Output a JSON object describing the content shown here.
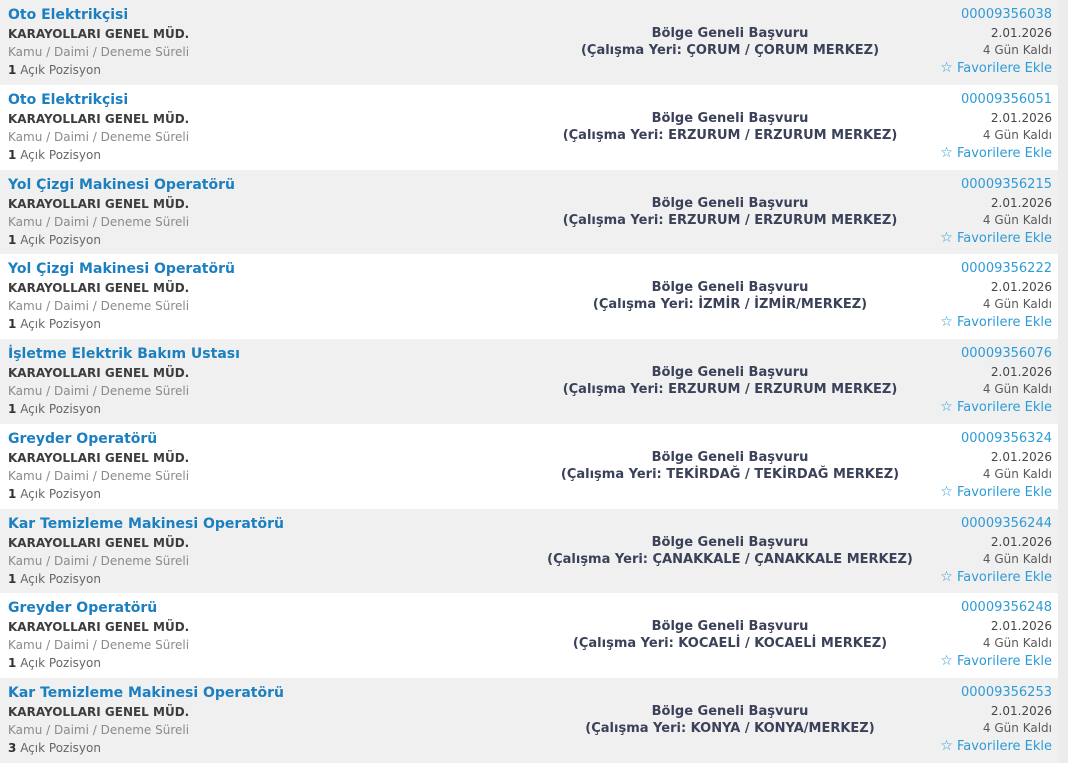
{
  "labels": {
    "open_positions": "Açık Pozisyon",
    "favorite": "Favorilere Ekle",
    "star_icon": "☆"
  },
  "colors": {
    "title_blue": "#1b7fc0",
    "link_blue": "#2e9bd6",
    "scope_navy": "#3a4158",
    "row_alt_gray": "#f0f0f0"
  },
  "listings": [
    {
      "title": "Oto Elektrikçisi",
      "org": "KARAYOLLARI GENEL MÜD.",
      "employment_type": "Kamu / Daimi / Deneme Süreli",
      "open_positions": "1",
      "application_scope": "Bölge Geneli Başvuru",
      "work_location": "(Çalışma Yeri: ÇORUM / ÇORUM MERKEZ)",
      "id": "00009356038",
      "date": "2.01.2026",
      "days_left": "4 Gün Kaldı"
    },
    {
      "title": "Oto Elektrikçisi",
      "org": "KARAYOLLARI GENEL MÜD.",
      "employment_type": "Kamu / Daimi / Deneme Süreli",
      "open_positions": "1",
      "application_scope": "Bölge Geneli Başvuru",
      "work_location": "(Çalışma Yeri: ERZURUM / ERZURUM MERKEZ)",
      "id": "00009356051",
      "date": "2.01.2026",
      "days_left": "4 Gün Kaldı"
    },
    {
      "title": "Yol Çizgi Makinesi Operatörü",
      "org": "KARAYOLLARI GENEL MÜD.",
      "employment_type": "Kamu / Daimi / Deneme Süreli",
      "open_positions": "1",
      "application_scope": "Bölge Geneli Başvuru",
      "work_location": "(Çalışma Yeri: ERZURUM / ERZURUM MERKEZ)",
      "id": "00009356215",
      "date": "2.01.2026",
      "days_left": "4 Gün Kaldı"
    },
    {
      "title": "Yol Çizgi Makinesi Operatörü",
      "org": "KARAYOLLARI GENEL MÜD.",
      "employment_type": "Kamu / Daimi / Deneme Süreli",
      "open_positions": "1",
      "application_scope": "Bölge Geneli Başvuru",
      "work_location": "(Çalışma Yeri: İZMİR / İZMİR/MERKEZ)",
      "id": "00009356222",
      "date": "2.01.2026",
      "days_left": "4 Gün Kaldı"
    },
    {
      "title": "İşletme Elektrik Bakım Ustası",
      "org": "KARAYOLLARI GENEL MÜD.",
      "employment_type": "Kamu / Daimi / Deneme Süreli",
      "open_positions": "1",
      "application_scope": "Bölge Geneli Başvuru",
      "work_location": "(Çalışma Yeri: ERZURUM / ERZURUM MERKEZ)",
      "id": "00009356076",
      "date": "2.01.2026",
      "days_left": "4 Gün Kaldı"
    },
    {
      "title": "Greyder Operatörü",
      "org": "KARAYOLLARI GENEL MÜD.",
      "employment_type": "Kamu / Daimi / Deneme Süreli",
      "open_positions": "1",
      "application_scope": "Bölge Geneli Başvuru",
      "work_location": "(Çalışma Yeri: TEKİRDAĞ / TEKİRDAĞ MERKEZ)",
      "id": "00009356324",
      "date": "2.01.2026",
      "days_left": "4 Gün Kaldı"
    },
    {
      "title": "Kar Temizleme Makinesi Operatörü",
      "org": "KARAYOLLARI GENEL MÜD.",
      "employment_type": "Kamu / Daimi / Deneme Süreli",
      "open_positions": "1",
      "application_scope": "Bölge Geneli Başvuru",
      "work_location": "(Çalışma Yeri: ÇANAKKALE / ÇANAKKALE MERKEZ)",
      "id": "00009356244",
      "date": "2.01.2026",
      "days_left": "4 Gün Kaldı"
    },
    {
      "title": "Greyder Operatörü",
      "org": "KARAYOLLARI GENEL MÜD.",
      "employment_type": "Kamu / Daimi / Deneme Süreli",
      "open_positions": "1",
      "application_scope": "Bölge Geneli Başvuru",
      "work_location": "(Çalışma Yeri: KOCAELİ / KOCAELİ MERKEZ)",
      "id": "00009356248",
      "date": "2.01.2026",
      "days_left": "4 Gün Kaldı"
    },
    {
      "title": "Kar Temizleme Makinesi Operatörü",
      "org": "KARAYOLLARI GENEL MÜD.",
      "employment_type": "Kamu / Daimi / Deneme Süreli",
      "open_positions": "3",
      "application_scope": "Bölge Geneli Başvuru",
      "work_location": "(Çalışma Yeri: KONYA / KONYA/MERKEZ)",
      "id": "00009356253",
      "date": "2.01.2026",
      "days_left": "4 Gün Kaldı"
    }
  ]
}
